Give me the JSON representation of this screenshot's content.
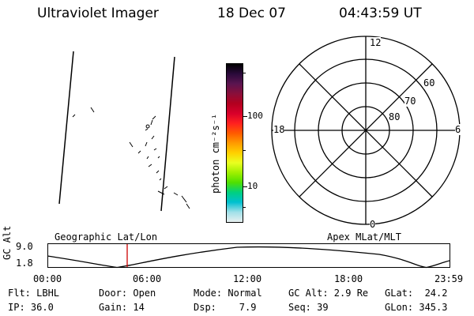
{
  "header": {
    "title": "Ultraviolet Imager",
    "date": "18 Dec 07",
    "time": "04:43:59 UT"
  },
  "colorbar": {
    "unit_label": "photon cm⁻²s⁻¹",
    "ticks": [
      "100",
      "10"
    ],
    "colors": [
      "#000000",
      "#2a0a3a",
      "#5a1450",
      "#8a0f3a",
      "#b3001f",
      "#d8002a",
      "#ff2020",
      "#ff5a00",
      "#ff9a00",
      "#ffd000",
      "#eaff20",
      "#a0f000",
      "#50e000",
      "#00d080",
      "#00c0d0",
      "#a0e0e8",
      "#e8f0f0"
    ]
  },
  "polar": {
    "mlt_labels": {
      "top": "12",
      "bottom": "0",
      "left": "18",
      "right": "6"
    },
    "lat_labels": [
      "60",
      "70",
      "80"
    ]
  },
  "timeline": {
    "y_title": "GC Alt",
    "y_ticks": [
      "9.0",
      "1.8"
    ],
    "left_caption": "Geographic Lat/Lon",
    "right_caption": "Apex MLat/MLT",
    "x_ticks": [
      "00:00",
      "06:00",
      "12:00",
      "18:00",
      "23:59"
    ],
    "marker_color": "#cc0000"
  },
  "info": {
    "row1": [
      "Flt: LBHL",
      "Door: Open",
      "Mode: Normal",
      "GC Alt: 2.9 Re",
      "GLat:  24.2"
    ],
    "row2": [
      "IP: 36.0",
      "Gain: 14",
      "Dsp:    7.9",
      "Seq: 39",
      "GLon: 345.3"
    ]
  }
}
